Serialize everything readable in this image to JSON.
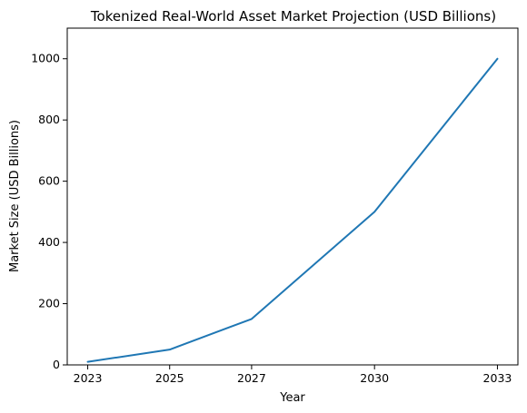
{
  "chart_data": {
    "type": "line",
    "title": "Tokenized Real-World Asset Market Projection (USD Billions)",
    "xlabel": "Year",
    "ylabel": "Market Size (USD Billions)",
    "x": [
      2023,
      2025,
      2027,
      2030,
      2033
    ],
    "series": [
      {
        "values": [
          10,
          50,
          150,
          500,
          1000
        ],
        "color": "#1f77b4"
      }
    ],
    "xticks": [
      2023,
      2025,
      2027,
      2030,
      2033
    ],
    "yticks": [
      0,
      200,
      400,
      600,
      800,
      1000
    ],
    "xlim": [
      2022.5,
      2033.5
    ],
    "ylim": [
      0,
      1100
    ],
    "grid": false,
    "legend": "none"
  }
}
